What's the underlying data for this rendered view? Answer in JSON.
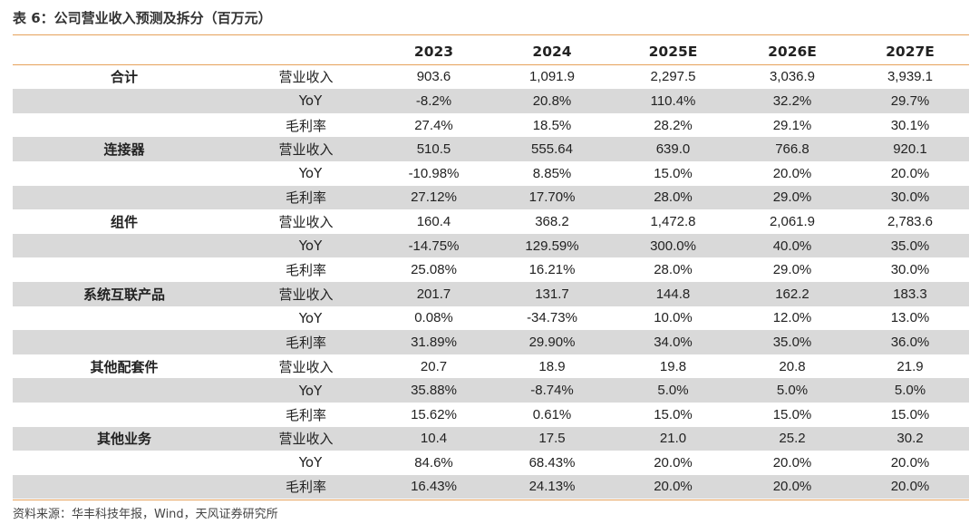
{
  "title": "表 6：公司营业收入预测及拆分（百万元）",
  "header": [
    "",
    "",
    "2023",
    "2024",
    "2025E",
    "2026E",
    "2027E"
  ],
  "rows": [
    {
      "segment": "合计",
      "metric": "营业收入",
      "values": [
        "903.6",
        "1,091.9",
        "2,297.5",
        "3,036.9",
        "3,939.1"
      ]
    },
    {
      "segment": "",
      "metric": "YoY",
      "values": [
        "-8.2%",
        "20.8%",
        "110.4%",
        "32.2%",
        "29.7%"
      ]
    },
    {
      "segment": "",
      "metric": "毛利率",
      "values": [
        "27.4%",
        "18.5%",
        "28.2%",
        "29.1%",
        "30.1%"
      ]
    },
    {
      "segment": "连接器",
      "metric": "营业收入",
      "values": [
        "510.5",
        "555.64",
        "639.0",
        "766.8",
        "920.1"
      ]
    },
    {
      "segment": "",
      "metric": "YoY",
      "values": [
        "-10.98%",
        "8.85%",
        "15.0%",
        "20.0%",
        "20.0%"
      ]
    },
    {
      "segment": "",
      "metric": "毛利率",
      "values": [
        "27.12%",
        "17.70%",
        "28.0%",
        "29.0%",
        "30.0%"
      ]
    },
    {
      "segment": "组件",
      "metric": "营业收入",
      "values": [
        "160.4",
        "368.2",
        "1,472.8",
        "2,061.9",
        "2,783.6"
      ]
    },
    {
      "segment": "",
      "metric": "YoY",
      "values": [
        "-14.75%",
        "129.59%",
        "300.0%",
        "40.0%",
        "35.0%"
      ]
    },
    {
      "segment": "",
      "metric": "毛利率",
      "values": [
        "25.08%",
        "16.21%",
        "28.0%",
        "29.0%",
        "30.0%"
      ]
    },
    {
      "segment": "系统互联产品",
      "metric": "营业收入",
      "values": [
        "201.7",
        "131.7",
        "144.8",
        "162.2",
        "183.3"
      ]
    },
    {
      "segment": "",
      "metric": "YoY",
      "values": [
        "0.08%",
        "-34.73%",
        "10.0%",
        "12.0%",
        "13.0%"
      ]
    },
    {
      "segment": "",
      "metric": "毛利率",
      "values": [
        "31.89%",
        "29.90%",
        "34.0%",
        "35.0%",
        "36.0%"
      ]
    },
    {
      "segment": "其他配套件",
      "metric": "营业收入",
      "values": [
        "20.7",
        "18.9",
        "19.8",
        "20.8",
        "21.9"
      ]
    },
    {
      "segment": "",
      "metric": "YoY",
      "values": [
        "35.88%",
        "-8.74%",
        "5.0%",
        "5.0%",
        "5.0%"
      ]
    },
    {
      "segment": "",
      "metric": "毛利率",
      "values": [
        "15.62%",
        "0.61%",
        "15.0%",
        "15.0%",
        "15.0%"
      ]
    },
    {
      "segment": "其他业务",
      "metric": "营业收入",
      "values": [
        "10.4",
        "17.5",
        "21.0",
        "25.2",
        "30.2"
      ]
    },
    {
      "segment": "",
      "metric": "YoY",
      "values": [
        "84.6%",
        "68.43%",
        "20.0%",
        "20.0%",
        "20.0%"
      ]
    },
    {
      "segment": "",
      "metric": "毛利率",
      "values": [
        "16.43%",
        "24.13%",
        "20.0%",
        "20.0%",
        "20.0%"
      ]
    }
  ],
  "source": "资料来源：华丰科技年报，Wind，天风证券研究所",
  "colors": {
    "accent_rule": "#e6a15a",
    "row_shade": "#d9d9d9"
  }
}
